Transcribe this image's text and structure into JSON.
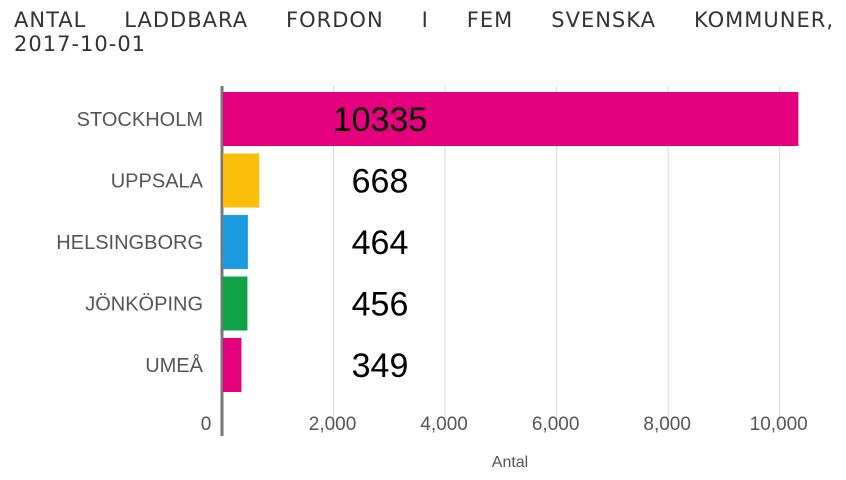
{
  "chart_data": {
    "type": "bar",
    "orientation": "horizontal",
    "title_line1": "ANTAL LADDBARA FORDON I FEM SVENSKA KOMMUNER,",
    "title_line2": "2017-10-01",
    "xlabel": "Antal",
    "ylabel": "",
    "categories": [
      "STOCKHOLM",
      "UPPSALA",
      "HELSINGBORG",
      "JÖNKÖPING",
      "UMEÅ"
    ],
    "values": [
      10335,
      668,
      464,
      456,
      349
    ],
    "data_labels": [
      "10335",
      "668",
      "464",
      "456",
      "349"
    ],
    "colors": [
      "#e5007d",
      "#fbbf0b",
      "#1d9be1",
      "#10a346",
      "#e5007d"
    ],
    "xlim": [
      0,
      10500
    ],
    "xticks": [
      0,
      2000,
      4000,
      6000,
      8000,
      10000
    ],
    "xtick_labels": [
      "0",
      "2,000",
      "4,000",
      "6,000",
      "8,000",
      "10,000"
    ],
    "grid": true,
    "legend": "none"
  }
}
